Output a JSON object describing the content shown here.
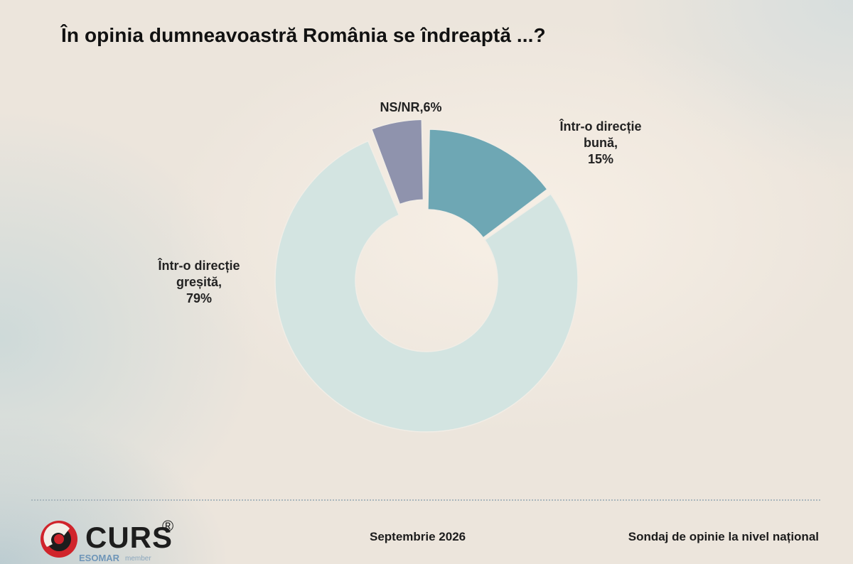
{
  "title": "În opinia dumneavoastră România se îndreaptă ...?",
  "chart_data": {
    "type": "pie",
    "style": "donut",
    "title": "În opinia dumneavoastră România se îndreaptă ...?",
    "slices": [
      {
        "label_lines": [
          "NS/NR,6%"
        ],
        "value": 6,
        "color": "#8f93ad",
        "exploded": true
      },
      {
        "label_lines": [
          "Într-o direcție",
          "bună,",
          "15%"
        ],
        "value": 15,
        "color": "#6ea7b4",
        "exploded": false
      },
      {
        "label_lines": [
          "Într-o direcție",
          "greșită,",
          "79%"
        ],
        "value": 79,
        "color": "#d3e4e1",
        "exploded": false
      }
    ],
    "legend": "none"
  },
  "footer": {
    "logo_text": "CURS",
    "logo_reg": "®",
    "logo_sub": "ESOMAR",
    "logo_sub2": "member",
    "date": "Septembrie 2026",
    "description": "Sondaj de opinie la nivel național"
  },
  "colors": {
    "logo_red": "#d0242b",
    "logo_dark": "#1d1d1d"
  }
}
